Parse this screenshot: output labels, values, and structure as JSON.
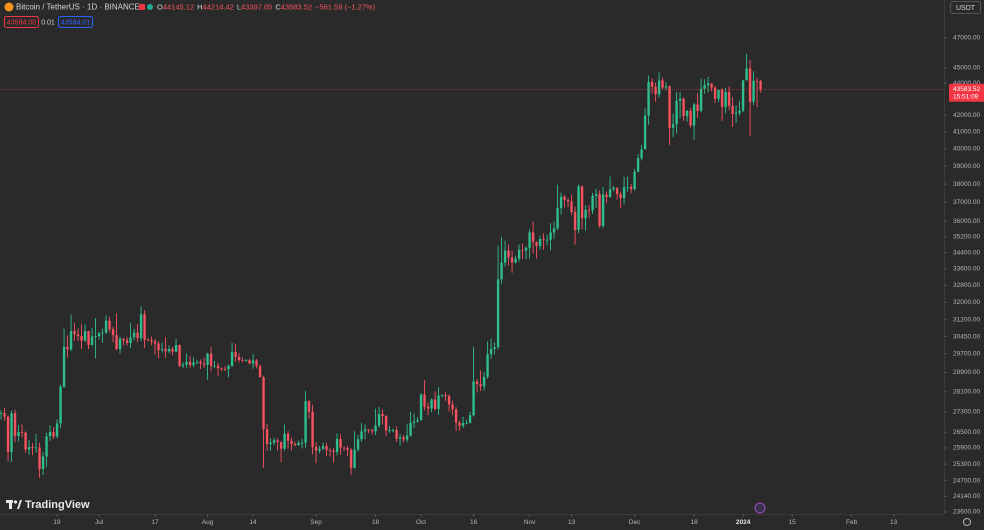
{
  "chart_data": {
    "type": "candlestick",
    "title": "Bitcoin / TetherUS · 1D · BINANCE",
    "legend": {
      "labels": [
        "O",
        "H",
        "L",
        "C"
      ],
      "values": [
        44145.12,
        44214.42,
        43397.05,
        43583.52
      ],
      "change": "−561.59 (−1.27%)"
    },
    "quote": {
      "bid": "43584.00",
      "spread": "0.01",
      "ask": "43584.01"
    },
    "currency": "USDT",
    "brand": "TradingView",
    "up_color": "#2fbf8f",
    "down_color": "#f7525f",
    "log_scale": true,
    "grid": false,
    "price_line": {
      "value": 43583.52,
      "countdown": "15:51:09",
      "color": "#f23645"
    },
    "open": [
      27240,
      27250,
      27100,
      25750,
      27240,
      26350,
      26500,
      26480,
      25840,
      25940,
      25900,
      25920,
      25120,
      25580,
      26340,
      26510,
      26340,
      26840,
      28310,
      30000,
      29890,
      30690,
      30550,
      30470,
      30270,
      30690,
      30080,
      30450,
      30470,
      30590,
      30620,
      31160,
      30770,
      30510,
      29900,
      30350,
      30290,
      30170,
      30420,
      30620,
      30380,
      31450,
      30310,
      30290,
      30230,
      30140,
      29860,
      29910,
      29800,
      29900,
      29790,
      30080,
      29180,
      29230,
      29350,
      29210,
      29320,
      29350,
      29280,
      29230,
      29700,
      29180,
      29180,
      29080,
      29050,
      29040,
      29180,
      29770,
      29560,
      29430,
      29400,
      29420,
      29280,
      29410,
      29170,
      28700,
      26620,
      26050,
      26100,
      26190,
      26120,
      25870,
      26440,
      26170,
      26050,
      26010,
      26090,
      26100,
      27720,
      27300,
      25940,
      25800,
      25870,
      25970,
      25820,
      25790,
      25750,
      26240,
      25910,
      25900,
      25830,
      25160,
      25840,
      26230,
      26530,
      26610,
      26570,
      26530,
      26760,
      27210,
      27130,
      26570,
      26580,
      26580,
      26250,
      26300,
      26220,
      26370,
      26860,
      26910,
      26970,
      27990,
      27500,
      27430,
      27790,
      27410,
      27950,
      27970,
      27930,
      27590,
      27390,
      26870,
      26750,
      26860,
      26860,
      27160,
      28520,
      28420,
      28330,
      28720,
      29680,
      29910,
      29990,
      33090,
      33900,
      34500,
      34150,
      33910,
      34090,
      34540,
      34500,
      34640,
      35420,
      34940,
      34730,
      35080,
      35050,
      35050,
      35420,
      35630,
      36700,
      37310,
      37130,
      37060,
      36490,
      35550,
      37880,
      36160,
      36600,
      36570,
      37360,
      37450,
      35760,
      37420,
      37290,
      37720,
      37790,
      37450,
      37240,
      37830,
      37850,
      37720,
      38690,
      39460,
      39970,
      41980,
      44080,
      43770,
      43290,
      44170,
      43720,
      43790,
      41240,
      41450,
      42890,
      43020,
      41940,
      42260,
      41370,
      42660,
      42270,
      43650,
      43870,
      43990,
      43720,
      43010,
      43580,
      42510,
      43440,
      42580,
      42070,
      42140,
      42280,
      44180,
      44950,
      42830,
      44150,
      44145.12
    ],
    "high": [
      27350,
      27450,
      27150,
      27350,
      27380,
      26780,
      26800,
      26530,
      26200,
      26080,
      26430,
      26100,
      25750,
      26480,
      26770,
      26700,
      27000,
      28400,
      30800,
      30500,
      31430,
      31060,
      30800,
      31000,
      30990,
      30710,
      30840,
      31280,
      30660,
      30800,
      31390,
      31330,
      30880,
      31500,
      30450,
      30380,
      30440,
      31050,
      30800,
      30990,
      31820,
      31640,
      30390,
      30450,
      30340,
      30250,
      30180,
      30420,
      30050,
      30000,
      30350,
      30100,
      29340,
      29700,
      29600,
      29550,
      29420,
      29450,
      29530,
      29740,
      30000,
      29400,
      29310,
      29110,
      29170,
      29240,
      30180,
      30130,
      29720,
      29540,
      29460,
      29470,
      29680,
      29470,
      29240,
      28760,
      26810,
      26270,
      26290,
      26260,
      26140,
      26800,
      26550,
      26300,
      26120,
      26180,
      26250,
      28140,
      27760,
      27580,
      26130,
      25980,
      26110,
      26100,
      25890,
      25890,
      26450,
      26420,
      25950,
      25980,
      25890,
      26540,
      26400,
      26860,
      26800,
      26620,
      26630,
      27420,
      27490,
      27390,
      27170,
      26740,
      26640,
      26730,
      26430,
      26390,
      26830,
      27300,
      27230,
      27090,
      28050,
      28590,
      27670,
      27830,
      28120,
      28290,
      28000,
      28100,
      27990,
      27740,
      27480,
      26950,
      27100,
      26990,
      27290,
      30000,
      28620,
      28990,
      28930,
      30240,
      30350,
      30200,
      34740,
      35200,
      35000,
      34820,
      34500,
      34250,
      34800,
      34860,
      34720,
      35580,
      35990,
      34950,
      35260,
      35380,
      35290,
      35900,
      35980,
      37970,
      37530,
      37410,
      37230,
      37420,
      36770,
      37980,
      37930,
      36850,
      36850,
      37520,
      37750,
      37650,
      37850,
      37600,
      38420,
      37890,
      37820,
      37580,
      38400,
      38420,
      38000,
      38850,
      39690,
      40230,
      42420,
      44490,
      44300,
      44050,
      44700,
      44370,
      44050,
      43850,
      42100,
      43440,
      43420,
      43090,
      42320,
      42440,
      42760,
      43360,
      44290,
      44240,
      44400,
      43940,
      43820,
      43600,
      43680,
      43680,
      43790,
      43120,
      42600,
      42890,
      44190,
      45900,
      45500,
      44770,
      44350,
      44214.42
    ],
    "low": [
      26990,
      26950,
      25400,
      25380,
      26120,
      26150,
      26300,
      25720,
      25640,
      25630,
      25720,
      24800,
      24900,
      25180,
      26170,
      26240,
      26260,
      26650,
      28260,
      29530,
      29820,
      30260,
      30250,
      29900,
      30220,
      29900,
      30050,
      29500,
      30330,
      30170,
      30570,
      30640,
      30200,
      29850,
      29700,
      30050,
      30050,
      29950,
      30280,
      30200,
      30250,
      29950,
      30250,
      30070,
      29660,
      29500,
      29750,
      29530,
      29720,
      29630,
      29750,
      29120,
      29080,
      29100,
      29100,
      29120,
      29250,
      29050,
      29100,
      28600,
      28950,
      29100,
      28760,
      28960,
      28970,
      28700,
      29130,
      29360,
      29320,
      29340,
      29360,
      29250,
      29060,
      29070,
      28700,
      25160,
      25800,
      25800,
      26000,
      25800,
      25370,
      25800,
      25870,
      25800,
      25960,
      25980,
      25880,
      25910,
      27030,
      25660,
      25330,
      25700,
      25810,
      25600,
      25580,
      25350,
      25620,
      25650,
      25790,
      25600,
      24900,
      25130,
      25760,
      26130,
      26230,
      26470,
      26410,
      26390,
      26670,
      26800,
      26350,
      26480,
      26500,
      26130,
      25990,
      26100,
      26120,
      26320,
      26670,
      26880,
      26960,
      27350,
      27160,
      27280,
      27350,
      27180,
      27870,
      27730,
      27300,
      27160,
      26550,
      26560,
      26660,
      26810,
      26840,
      27110,
      28070,
      28130,
      28150,
      28640,
      29480,
      29670,
      29890,
      32880,
      33700,
      33750,
      33400,
      33860,
      33950,
      34080,
      34080,
      34100,
      34350,
      34100,
      34560,
      34540,
      34760,
      34520,
      35120,
      35550,
      36350,
      36740,
      36750,
      36330,
      34800,
      35380,
      35600,
      35520,
      36180,
      36380,
      36700,
      35660,
      35660,
      36950,
      37260,
      37600,
      37150,
      36700,
      36900,
      37580,
      37500,
      37630,
      38650,
      39330,
      39970,
      41420,
      43330,
      42830,
      43090,
      43580,
      43560,
      40220,
      40680,
      40900,
      41800,
      41650,
      41600,
      41250,
      40530,
      41820,
      42180,
      43330,
      43400,
      43470,
      42730,
      42800,
      41650,
      42110,
      42300,
      41300,
      41520,
      41970,
      42180,
      44180,
      40750,
      42630,
      42500,
      43397.05
    ],
    "close": [
      27250,
      27100,
      25750,
      27240,
      26350,
      26500,
      26480,
      25840,
      25940,
      25900,
      25920,
      25120,
      25580,
      26340,
      26510,
      26340,
      26840,
      28310,
      30000,
      29890,
      30690,
      30550,
      30470,
      30270,
      30690,
      30080,
      30450,
      30470,
      30590,
      30620,
      31160,
      30770,
      30510,
      29900,
      30350,
      30290,
      30170,
      30420,
      30620,
      30380,
      31450,
      30310,
      30290,
      30230,
      30140,
      29860,
      29910,
      29800,
      29900,
      29790,
      30080,
      29180,
      29230,
      29350,
      29210,
      29320,
      29350,
      29280,
      29230,
      29700,
      29180,
      29180,
      29080,
      29050,
      29040,
      29180,
      29770,
      29560,
      29430,
      29400,
      29420,
      29280,
      29410,
      29170,
      28700,
      26620,
      26050,
      26100,
      26190,
      26120,
      25870,
      26440,
      26170,
      26050,
      26010,
      26090,
      26100,
      27720,
      27300,
      25940,
      25800,
      25870,
      25970,
      25820,
      25790,
      25750,
      26240,
      25910,
      25900,
      25830,
      25160,
      25840,
      26230,
      26530,
      26610,
      26570,
      26530,
      26760,
      27210,
      27130,
      26570,
      26580,
      26580,
      26250,
      26300,
      26220,
      26370,
      26860,
      26910,
      26970,
      27990,
      27500,
      27430,
      27790,
      27410,
      27950,
      27970,
      27930,
      27590,
      27390,
      26870,
      26750,
      26860,
      26860,
      27160,
      28520,
      28420,
      28330,
      28720,
      29680,
      29910,
      29990,
      33090,
      33900,
      34500,
      34150,
      33910,
      34090,
      34540,
      34500,
      34640,
      35420,
      34940,
      34730,
      35080,
      35050,
      35050,
      35420,
      35630,
      36700,
      37310,
      37130,
      37060,
      36490,
      35550,
      37880,
      36160,
      36600,
      36570,
      37360,
      37450,
      35760,
      37420,
      37290,
      37720,
      37790,
      37450,
      37240,
      37830,
      37850,
      37720,
      38690,
      39460,
      39970,
      41980,
      44080,
      43770,
      43290,
      44170,
      43720,
      43790,
      41240,
      41450,
      42890,
      43020,
      41940,
      42260,
      41370,
      42660,
      42270,
      43650,
      43870,
      43990,
      43720,
      43010,
      43580,
      42510,
      43440,
      42580,
      42070,
      42140,
      42280,
      44180,
      44950,
      42830,
      44150,
      44145.12,
      43583.52
    ],
    "xlim": [
      -0.3,
      269.4
    ],
    "xticks": [
      {
        "value": 16,
        "label": "19"
      },
      {
        "value": 28,
        "label": "Jul"
      },
      {
        "value": 44,
        "label": "17"
      },
      {
        "value": 59,
        "label": "Aug"
      },
      {
        "value": 72,
        "label": "14"
      },
      {
        "value": 90,
        "label": "Sep"
      },
      {
        "value": 107,
        "label": "18"
      },
      {
        "value": 120,
        "label": "Oct"
      },
      {
        "value": 135,
        "label": "16"
      },
      {
        "value": 151,
        "label": "Nov"
      },
      {
        "value": 163,
        "label": "13"
      },
      {
        "value": 181,
        "label": "Dec"
      },
      {
        "value": 198,
        "label": "18"
      },
      {
        "value": 212,
        "label": "2024"
      },
      {
        "value": 226,
        "label": "15"
      },
      {
        "value": 243,
        "label": "Feb"
      },
      {
        "value": 255,
        "label": "13"
      }
    ],
    "ylim": [
      23530,
      49650
    ],
    "yticks": [
      {
        "value": 47000,
        "label": "47000.00"
      },
      {
        "value": 45000,
        "label": "45000.00"
      },
      {
        "value": 44000,
        "label": "44000.00"
      },
      {
        "value": 42000,
        "label": "42000.00"
      },
      {
        "value": 41000,
        "label": "41000.00"
      },
      {
        "value": 40000,
        "label": "40000.00"
      },
      {
        "value": 39000,
        "label": "39000.00"
      },
      {
        "value": 38000,
        "label": "38000.00"
      },
      {
        "value": 37000,
        "label": "37000.00"
      },
      {
        "value": 36000,
        "label": "36000.00"
      },
      {
        "value": 35200,
        "label": "35200.00"
      },
      {
        "value": 34400,
        "label": "34400.00"
      },
      {
        "value": 33600,
        "label": "33600.00"
      },
      {
        "value": 32800,
        "label": "32800.00"
      },
      {
        "value": 32000,
        "label": "32000.00"
      },
      {
        "value": 31200,
        "label": "31200.00"
      },
      {
        "value": 30450,
        "label": "30450.00"
      },
      {
        "value": 29700,
        "label": "29700.00"
      },
      {
        "value": 28900,
        "label": "28900.00"
      },
      {
        "value": 28100,
        "label": "28100.00"
      },
      {
        "value": 27300,
        "label": "27300.00"
      },
      {
        "value": 26500,
        "label": "26500.00"
      },
      {
        "value": 25900,
        "label": "25900.00"
      },
      {
        "value": 25300,
        "label": "25300.00"
      },
      {
        "value": 24700,
        "label": "24700.00"
      },
      {
        "value": 24140,
        "label": "24140.00"
      },
      {
        "value": 23600,
        "label": "23600.00"
      }
    ]
  }
}
